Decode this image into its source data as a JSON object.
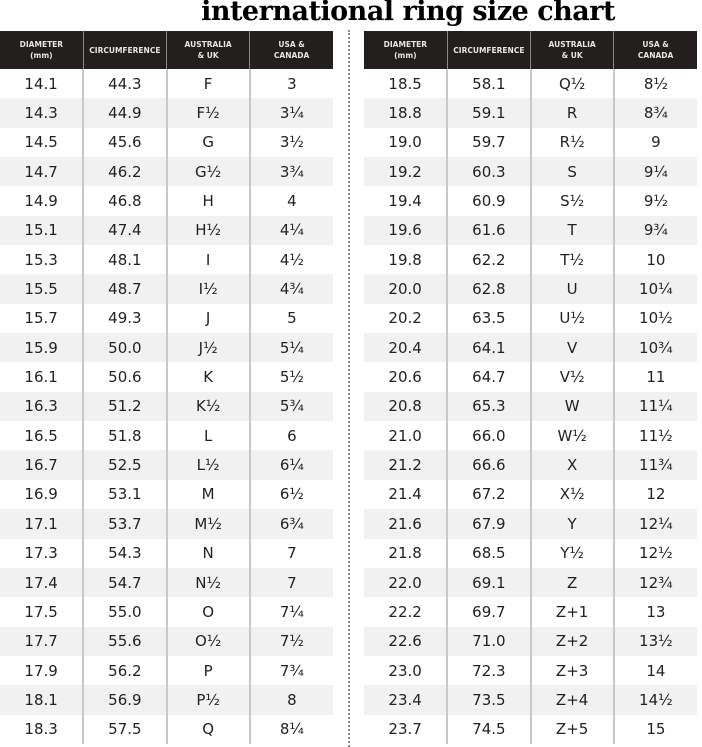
{
  "title": "international ring size chart",
  "headers": [
    "DIAMETER\n(mm)",
    "CIRCUMFERENCE",
    "AUSTRALIA\n& UK",
    "USA &\nCANADA"
  ],
  "left_rows": [
    [
      "14.1",
      "44.3",
      "F",
      "3"
    ],
    [
      "14.3",
      "44.9",
      "F½",
      "3¼"
    ],
    [
      "14.5",
      "45.6",
      "G",
      "3½"
    ],
    [
      "14.7",
      "46.2",
      "G½",
      "3¾"
    ],
    [
      "14.9",
      "46.8",
      "H",
      "4"
    ],
    [
      "15.1",
      "47.4",
      "H½",
      "4¼"
    ],
    [
      "15.3",
      "48.1",
      "I",
      "4½"
    ],
    [
      "15.5",
      "48.7",
      "I½",
      "4¾"
    ],
    [
      "15.7",
      "49.3",
      "J",
      "5"
    ],
    [
      "15.9",
      "50.0",
      "J½",
      "5¼"
    ],
    [
      "16.1",
      "50.6",
      "K",
      "5½"
    ],
    [
      "16.3",
      "51.2",
      "K½",
      "5¾"
    ],
    [
      "16.5",
      "51.8",
      "L",
      "6"
    ],
    [
      "16.7",
      "52.5",
      "L½",
      "6¼"
    ],
    [
      "16.9",
      "53.1",
      "M",
      "6½"
    ],
    [
      "17.1",
      "53.7",
      "M½",
      "6¾"
    ],
    [
      "17.3",
      "54.3",
      "N",
      "7"
    ],
    [
      "17.4",
      "54.7",
      "N½",
      "7"
    ],
    [
      "17.5",
      "55.0",
      "O",
      "7¼"
    ],
    [
      "17.7",
      "55.6",
      "O½",
      "7½"
    ],
    [
      "17.9",
      "56.2",
      "P",
      "7¾"
    ],
    [
      "18.1",
      "56.9",
      "P½",
      "8"
    ],
    [
      "18.3",
      "57.5",
      "Q",
      "8¼"
    ]
  ],
  "right_rows": [
    [
      "18.5",
      "58.1",
      "Q½",
      "8½"
    ],
    [
      "18.8",
      "59.1",
      "R",
      "8¾"
    ],
    [
      "19.0",
      "59.7",
      "R½",
      "9"
    ],
    [
      "19.2",
      "60.3",
      "S",
      "9¼"
    ],
    [
      "19.4",
      "60.9",
      "S½",
      "9½"
    ],
    [
      "19.6",
      "61.6",
      "T",
      "9¾"
    ],
    [
      "19.8",
      "62.2",
      "T½",
      "10"
    ],
    [
      "20.0",
      "62.8",
      "U",
      "10¼"
    ],
    [
      "20.2",
      "63.5",
      "U½",
      "10½"
    ],
    [
      "20.4",
      "64.1",
      "V",
      "10¾"
    ],
    [
      "20.6",
      "64.7",
      "V½",
      "11"
    ],
    [
      "20.8",
      "65.3",
      "W",
      "11¼"
    ],
    [
      "21.0",
      "66.0",
      "W½",
      "11½"
    ],
    [
      "21.2",
      "66.6",
      "X",
      "11¾"
    ],
    [
      "21.4",
      "67.2",
      "X½",
      "12"
    ],
    [
      "21.6",
      "67.9",
      "Y",
      "12¼"
    ],
    [
      "21.8",
      "68.5",
      "Y½",
      "12½"
    ],
    [
      "22.0",
      "69.1",
      "Z",
      "12¾"
    ],
    [
      "22.2",
      "69.7",
      "Z+1",
      "13"
    ],
    [
      "22.6",
      "71.0",
      "Z+2",
      "13½"
    ],
    [
      "23.0",
      "72.3",
      "Z+3",
      "14"
    ],
    [
      "23.4",
      "73.5",
      "Z+4",
      "14½"
    ],
    [
      "23.7",
      "74.5",
      "Z+5",
      "15"
    ]
  ]
}
